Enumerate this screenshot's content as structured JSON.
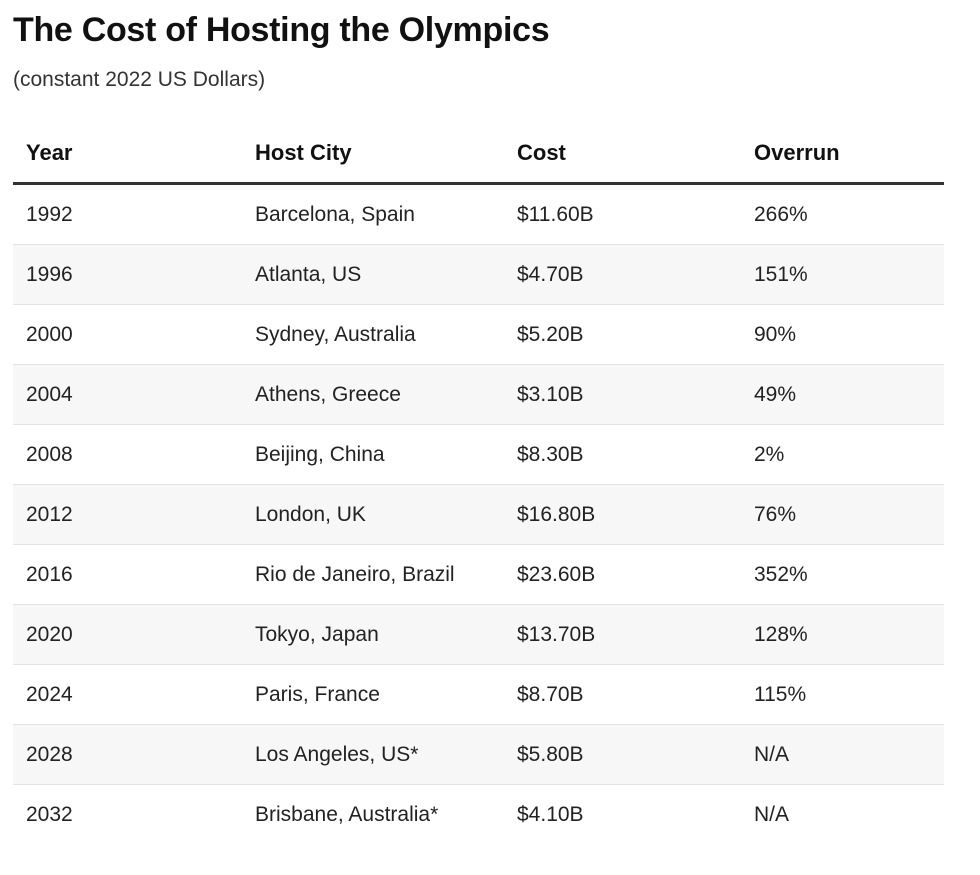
{
  "title": "The Cost of Hosting the Olympics",
  "subtitle": "(constant 2022 US Dollars)",
  "chart_data": {
    "type": "table",
    "title": "The Cost of Hosting the Olympics",
    "subtitle": "(constant 2022 US Dollars)",
    "columns": [
      "Year",
      "Host City",
      "Cost",
      "Overrun"
    ],
    "rows": [
      [
        "1992",
        "Barcelona, Spain",
        "$11.60B",
        "266%"
      ],
      [
        "1996",
        "Atlanta, US",
        "$4.70B",
        "151%"
      ],
      [
        "2000",
        "Sydney, Australia",
        "$5.20B",
        "90%"
      ],
      [
        "2004",
        "Athens, Greece",
        "$3.10B",
        "49%"
      ],
      [
        "2008",
        "Beijing, China",
        "$8.30B",
        "2%"
      ],
      [
        "2012",
        "London, UK",
        "$16.80B",
        "76%"
      ],
      [
        "2016",
        "Rio de Janeiro, Brazil",
        "$23.60B",
        "352%"
      ],
      [
        "2020",
        "Tokyo, Japan",
        "$13.70B",
        "128%"
      ],
      [
        "2024",
        "Paris, France",
        "$8.70B",
        "115%"
      ],
      [
        "2028",
        "Los Angeles, US*",
        "$5.80B",
        "N/A"
      ],
      [
        "2032",
        "Brisbane, Australia*",
        "$4.10B",
        "N/A"
      ]
    ]
  },
  "colors": {
    "alt_row_background": "#f7f7f7",
    "header_rule": "#333333",
    "row_divider": "#e2e2e2"
  }
}
